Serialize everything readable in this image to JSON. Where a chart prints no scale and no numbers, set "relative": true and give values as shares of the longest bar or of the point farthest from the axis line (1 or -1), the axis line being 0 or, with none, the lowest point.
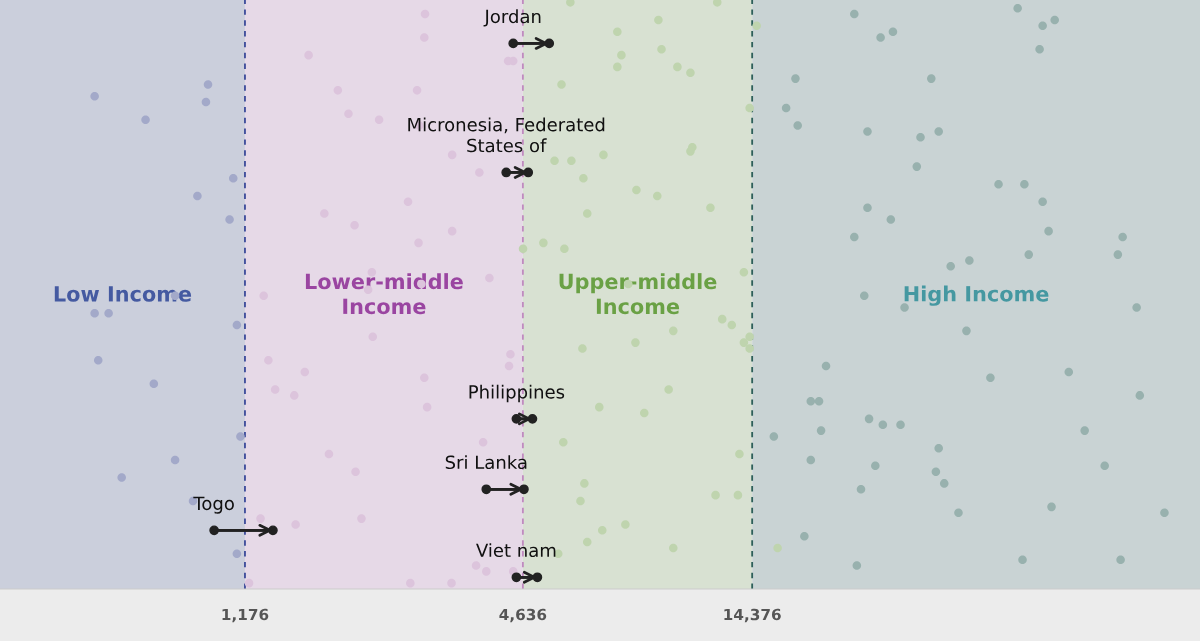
{
  "chart_data": {
    "type": "scatter",
    "relative": true,
    "log": "x",
    "tick_labels": "x",
    "marker": "circle",
    "xlim": [
      351,
      131100
    ],
    "xticks": [
      {
        "value": 1176,
        "label": "1,176"
      },
      {
        "value": 4636,
        "label": "4,636"
      },
      {
        "value": 14376,
        "label": "14,376"
      }
    ],
    "bands": [
      {
        "axis": "x",
        "from": 351,
        "to": 1176,
        "label": "Low Income",
        "color": "#cbcfdc"
      },
      {
        "axis": "x",
        "from": 1176,
        "to": 4636,
        "label": "Lower-middle\nIncome",
        "color": "#e6d9e7"
      },
      {
        "axis": "x",
        "from": 4636,
        "to": 14376,
        "label": "Upper-middle\nIncome",
        "color": "#d8e1d2"
      },
      {
        "axis": "x",
        "from": 14376,
        "to": 131100,
        "label": "High Income",
        "color": "#c9d3d4"
      }
    ],
    "ref_lines": [
      {
        "axis": "x",
        "value": 1176,
        "color": "#3b4a9a",
        "line_style": "dashed"
      },
      {
        "axis": "x",
        "value": 4636,
        "color": "#c08ac0",
        "line_style": "dashed"
      },
      {
        "axis": "x",
        "value": 14376,
        "color": "#2d5f5a",
        "line_style": "dashed"
      }
    ],
    "series": [
      {
        "color": "#a3a9c9",
        "x": [
          560,
          720,
          980,
          970,
          1110,
          930,
          1090,
          833,
          560,
          600,
          1130,
          570,
          750,
          1150,
          833,
          640,
          910,
          1130
        ],
        "values": [
          0.84,
          0.8,
          0.86,
          0.83,
          0.7,
          0.67,
          0.63,
          0.5,
          0.47,
          0.47,
          0.45,
          0.39,
          0.35,
          0.26,
          0.22,
          0.19,
          0.15,
          0.06
        ]
      },
      {
        "color": "#dcc4dc",
        "x": [
          1610,
          1860,
          1960,
          2280,
          1740,
          2020,
          2200,
          2160,
          1290,
          2210,
          1320,
          1580,
          1365,
          1500,
          1780,
          2030,
          2090,
          1270,
          1510,
          1200,
          2860,
          2850,
          4310,
          4420,
          2750,
          2780,
          3270,
          3740,
          2630,
          3270,
          2770,
          3930,
          2810,
          4360,
          4330,
          2850,
          2890,
          3810,
          3680,
          3870,
          3260,
          2660,
          4420
        ],
        "values": [
          0.91,
          0.85,
          0.81,
          0.8,
          0.64,
          0.62,
          0.54,
          0.51,
          0.5,
          0.43,
          0.39,
          0.37,
          0.34,
          0.33,
          0.23,
          0.2,
          0.12,
          0.12,
          0.11,
          0.01,
          0.98,
          0.94,
          0.9,
          0.9,
          0.85,
          0.79,
          0.74,
          0.71,
          0.66,
          0.61,
          0.59,
          0.53,
          0.52,
          0.4,
          0.38,
          0.36,
          0.31,
          0.25,
          0.04,
          0.03,
          0.01,
          0.01,
          0.03
        ]
      },
      {
        "color": "#bfd4ae",
        "x": [
          5860,
          12100,
          9050,
          7390,
          7540,
          9190,
          7390,
          9940,
          10600,
          5610,
          14700,
          14200,
          10700,
          10600,
          6900,
          5420,
          5890,
          6250,
          8120,
          9000,
          6370,
          11700,
          5130,
          5690,
          4640,
          13800,
          7800,
          12400,
          13000,
          9740,
          13800,
          14200,
          14200,
          6220,
          8080,
          9520,
          6760,
          8440,
          5660,
          13500,
          6280,
          6160,
          12000,
          13400,
          7689,
          6860,
          6370,
          9740,
          5520,
          16300
        ],
        "values": [
          1.0,
          1.0,
          0.97,
          0.95,
          0.91,
          0.92,
          0.89,
          0.89,
          0.88,
          0.86,
          0.96,
          0.82,
          0.753,
          0.746,
          0.74,
          0.73,
          0.73,
          0.7,
          0.68,
          0.67,
          0.64,
          0.65,
          0.59,
          0.58,
          0.58,
          0.54,
          0.52,
          0.46,
          0.45,
          0.44,
          0.42,
          0.43,
          0.41,
          0.41,
          0.42,
          0.34,
          0.31,
          0.3,
          0.25,
          0.23,
          0.18,
          0.15,
          0.16,
          0.16,
          0.11,
          0.1,
          0.08,
          0.07,
          0.06,
          0.07
        ]
      },
      {
        "color": "#98b1ae",
        "x": [
          23800,
          53300,
          60300,
          64000,
          28800,
          27100,
          59400,
          17800,
          34800,
          17000,
          18000,
          25400,
          33000,
          36100,
          32400,
          48500,
          55100,
          60300,
          25400,
          28500,
          23800,
          62100,
          89500,
          87400,
          56300,
          42000,
          38300,
          25000,
          30500,
          95900,
          41400,
          20700,
          46600,
          68600,
          97400,
          19200,
          20000,
          25600,
          27400,
          29900,
          16000,
          20200,
          74200,
          19200,
          36100,
          26400,
          35600,
          37100,
          81900,
          24600,
          63000,
          39800,
          110000,
          18600,
          24100,
          54600,
          88600
        ],
        "values": [
          0.98,
          0.99,
          0.96,
          0.97,
          0.95,
          0.94,
          0.92,
          0.87,
          0.87,
          0.82,
          0.79,
          0.78,
          0.77,
          0.78,
          0.72,
          0.69,
          0.69,
          0.66,
          0.65,
          0.63,
          0.6,
          0.61,
          0.6,
          0.57,
          0.57,
          0.56,
          0.55,
          0.5,
          0.48,
          0.48,
          0.44,
          0.38,
          0.36,
          0.37,
          0.33,
          0.32,
          0.32,
          0.29,
          0.28,
          0.28,
          0.26,
          0.27,
          0.27,
          0.22,
          0.24,
          0.21,
          0.2,
          0.18,
          0.21,
          0.17,
          0.14,
          0.13,
          0.13,
          0.09,
          0.04,
          0.05,
          0.05
        ]
      },
      {
        "type": "line",
        "name": "Jordan",
        "color": "#222222",
        "x": [
          4420,
          5280
        ],
        "values": [
          0.93,
          0.93
        ]
      },
      {
        "type": "line",
        "name": "Micronesia, Federated\nStates of",
        "color": "#222222",
        "x": [
          4270,
          4760
        ],
        "values": [
          0.71,
          0.71
        ]
      },
      {
        "type": "line",
        "name": "Philippines",
        "color": "#222222",
        "x": [
          4490,
          4860
        ],
        "values": [
          0.29,
          0.29
        ]
      },
      {
        "type": "line",
        "name": "Sri Lanka",
        "color": "#222222",
        "x": [
          3870,
          4660
        ],
        "values": [
          0.17,
          0.17
        ]
      },
      {
        "type": "line",
        "name": "Togo",
        "color": "#222222",
        "x": [
          1010,
          1350
        ],
        "values": [
          0.1,
          0.1
        ]
      },
      {
        "type": "line",
        "name": "Viet nam",
        "color": "#222222",
        "x": [
          4490,
          4980
        ],
        "values": [
          0.02,
          0.02
        ]
      }
    ]
  }
}
